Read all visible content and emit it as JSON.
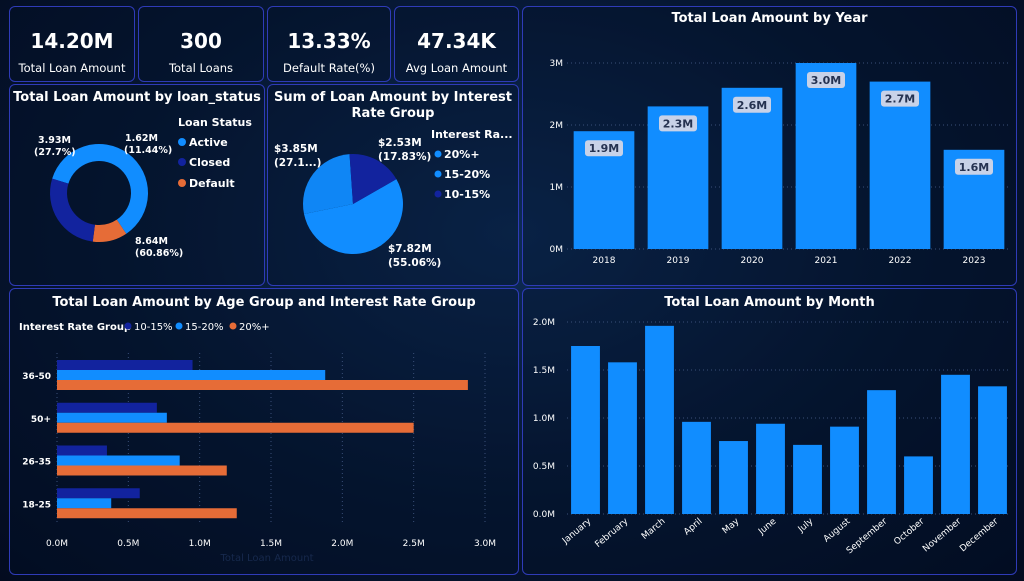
{
  "colors": {
    "active": "#118dff",
    "closed": "#12239e",
    "default": "#e66c37",
    "bar": "#118dff",
    "r1015": "#12239e",
    "r1520": "#118dff",
    "r20": "#e66c37"
  },
  "kpis": [
    {
      "value": "14.20M",
      "label": "Total Loan Amount"
    },
    {
      "value": "300",
      "label": "Total Loans"
    },
    {
      "value": "13.33%",
      "label": "Default Rate(%)"
    },
    {
      "value": "47.34K",
      "label": "Avg Loan Amount"
    }
  ],
  "status_chart": {
    "title": "Total Loan Amount by loan_status",
    "legend_title": "Loan Status",
    "slices": [
      {
        "name": "Active",
        "value": 8.64,
        "label": "8.64M",
        "pct": "(60.86%)"
      },
      {
        "name": "Default",
        "value": 1.62,
        "label": "1.62M",
        "pct": "(11.44%)"
      },
      {
        "name": "Closed",
        "value": 3.93,
        "label": "3.93M",
        "pct": "(27.7%)"
      }
    ],
    "legend": [
      "Active",
      "Closed",
      "Default"
    ]
  },
  "rate_chart": {
    "title_line1": "Sum of Loan Amount by Interest",
    "title_line2": "Rate Group",
    "legend_title": "Interest Ra...",
    "slices": [
      {
        "name": "20%+",
        "value": 7.82,
        "label": "$7.82M",
        "pct": "(55.06%)"
      },
      {
        "name": "15-20%",
        "value": 3.85,
        "label": "$3.85M",
        "pct": "(27.1...)"
      },
      {
        "name": "10-15%",
        "value": 2.53,
        "label": "$2.53M",
        "pct": "(17.83%)"
      }
    ],
    "legend": [
      "20%+",
      "15-20%",
      "10-15%"
    ]
  },
  "chart_data": [
    {
      "type": "bar",
      "title": "Total Loan Amount by Year",
      "categories": [
        "2018",
        "2019",
        "2020",
        "2021",
        "2022",
        "2023"
      ],
      "values": [
        1.9,
        2.3,
        2.6,
        3.0,
        2.7,
        1.6
      ],
      "data_labels": [
        "1.9M",
        "2.3M",
        "2.6M",
        "3.0M",
        "2.7M",
        "1.6M"
      ],
      "yticks": [
        "0M",
        "1M",
        "2M",
        "3M"
      ],
      "ylim": [
        0,
        3.0
      ]
    },
    {
      "type": "bar",
      "title": "Total Loan Amount by Age Group and Interest Rate Group",
      "orientation": "horizontal",
      "legend_title": "Interest Rate Group",
      "categories": [
        "36-50",
        "50+",
        "26-35",
        "18-25"
      ],
      "series": [
        {
          "name": "10-15%",
          "values": [
            0.95,
            0.7,
            0.35,
            0.58
          ]
        },
        {
          "name": "15-20%",
          "values": [
            1.88,
            0.77,
            0.86,
            0.38
          ]
        },
        {
          "name": "20%+",
          "values": [
            2.88,
            2.5,
            1.19,
            1.26
          ]
        }
      ],
      "xticks": [
        "0.0M",
        "0.5M",
        "1.0M",
        "1.5M",
        "2.0M",
        "2.5M",
        "3.0M"
      ],
      "xlim": [
        0,
        3.0
      ],
      "xlabel": "Total Loan Amount"
    },
    {
      "type": "bar",
      "title": "Total Loan Amount by Month",
      "categories": [
        "January",
        "February",
        "March",
        "April",
        "May",
        "June",
        "July",
        "August",
        "September",
        "October",
        "November",
        "December"
      ],
      "values": [
        1.75,
        1.58,
        1.96,
        0.96,
        0.76,
        0.94,
        0.72,
        0.91,
        1.29,
        0.6,
        1.45,
        1.33
      ],
      "yticks": [
        "0.0M",
        "0.5M",
        "1.0M",
        "1.5M",
        "2.0M"
      ],
      "ylim": [
        0,
        2.0
      ]
    }
  ]
}
